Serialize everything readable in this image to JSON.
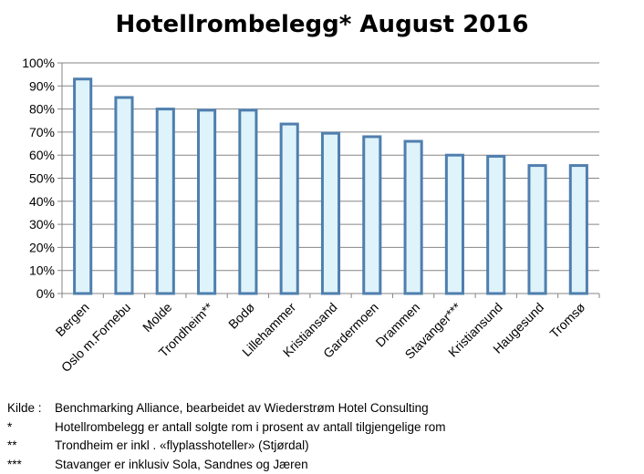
{
  "chart_data": {
    "type": "bar",
    "title": "Hotellrombelegg* August 2016",
    "xlabel": "",
    "ylabel": "",
    "ylim": [
      0,
      100
    ],
    "y_ticks": [
      "0%",
      "10%",
      "20%",
      "30%",
      "40%",
      "50%",
      "60%",
      "70%",
      "80%",
      "90%",
      "100%"
    ],
    "grid": true,
    "categories": [
      "Bergen",
      "Oslo m.Fornebu",
      "Molde",
      "Trondheim**",
      "Bodø",
      "Lillehammer",
      "Kristiansand",
      "Gardermoen",
      "Drammen",
      "Stavanger***",
      "Kristiansund",
      "Haugesund",
      "Tromsø"
    ],
    "values": [
      93,
      85,
      80,
      79.5,
      79.5,
      73.5,
      69.5,
      68,
      66,
      60,
      59.5,
      55.5,
      55.5
    ],
    "colors": {
      "bar_fill": "#dff3fb",
      "bar_stroke": "#4f7fae",
      "grid": "#868686",
      "axis": "#868686"
    }
  },
  "notes": [
    {
      "mark": "Kilde :",
      "text": "Benchmarking Alliance, bearbeidet av Wiederstrøm Hotel Consulting"
    },
    {
      "mark": "*",
      "text": "Hotellrombelegg er antall solgte rom i prosent av antall tilgjengelige rom"
    },
    {
      "mark": "**",
      "text": "Trondheim er inkl . «flyplasshoteller» (Stjørdal)"
    },
    {
      "mark": "***",
      "text": "Stavanger er inklusiv Sola, Sandnes og Jæren"
    }
  ]
}
